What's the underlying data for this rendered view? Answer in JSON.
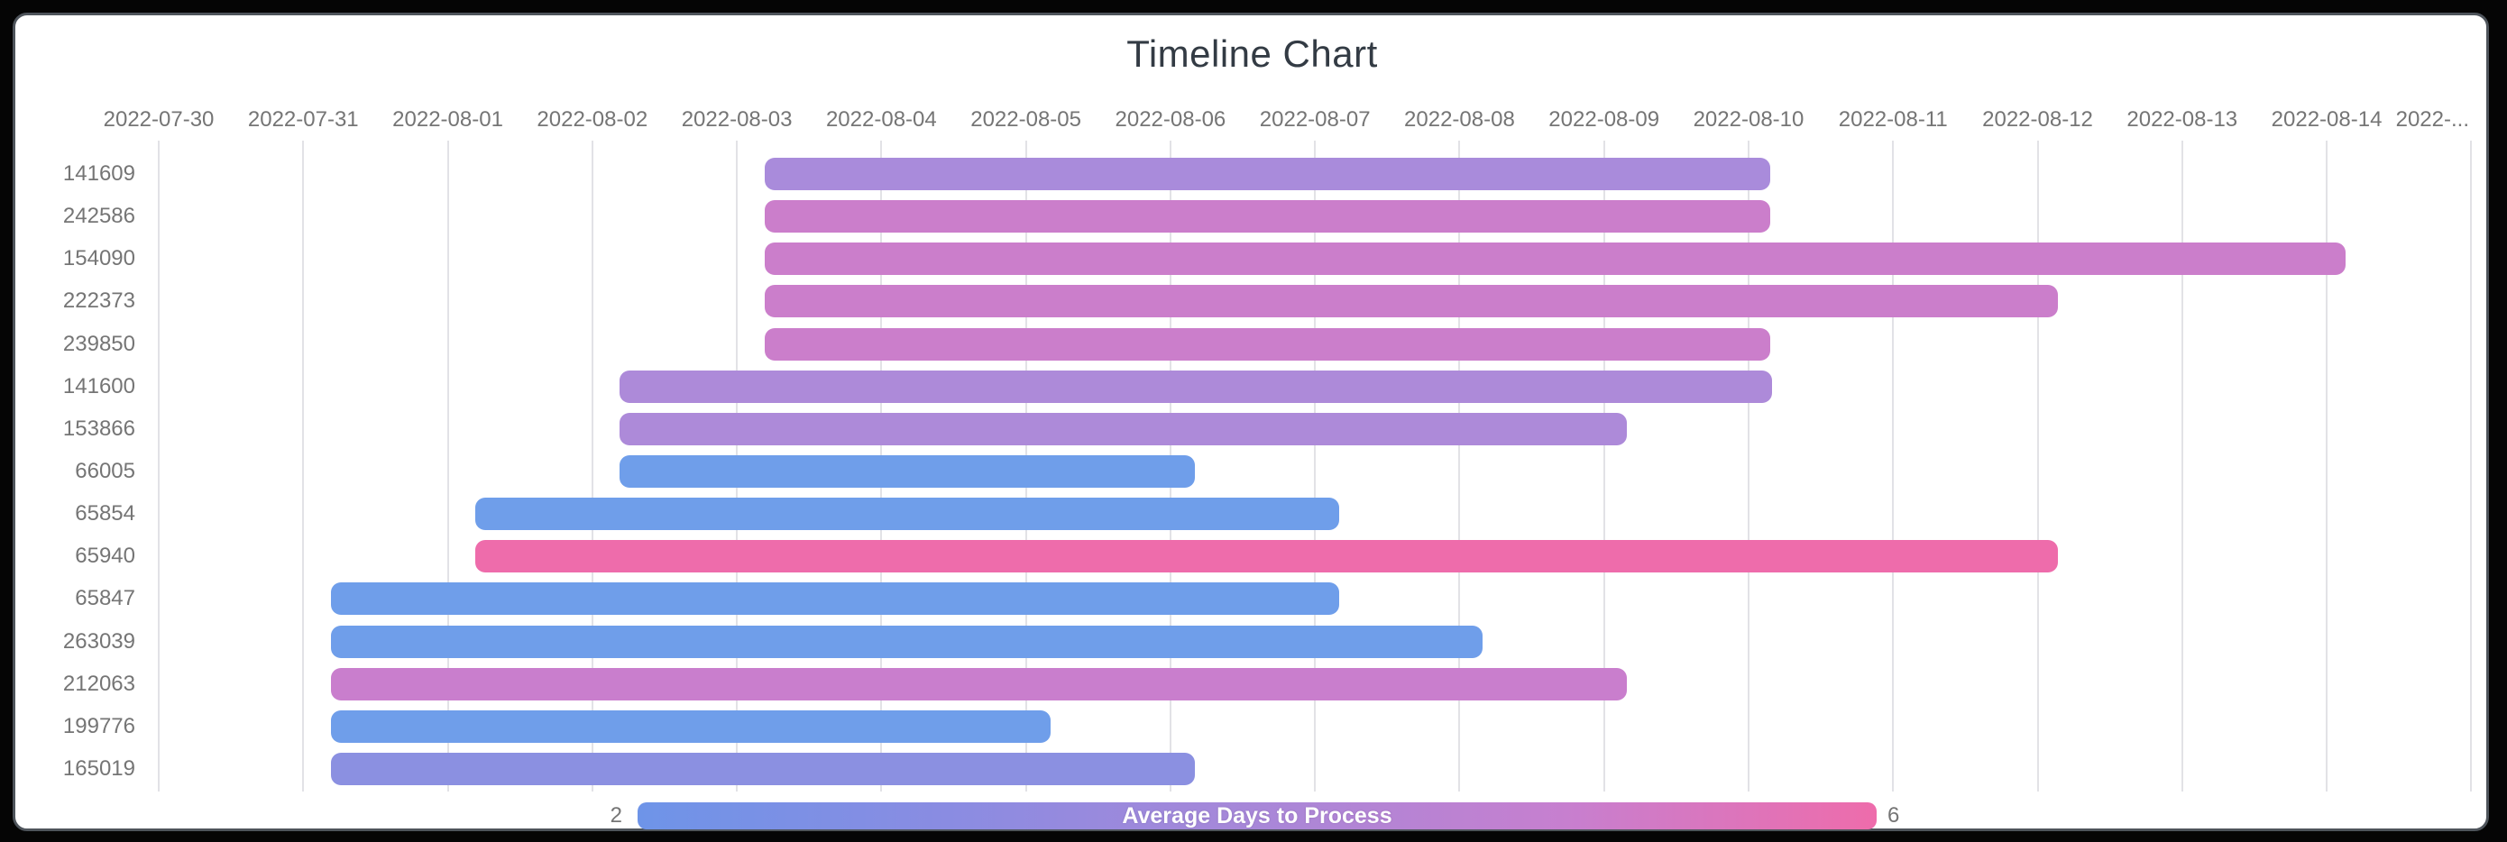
{
  "window": {
    "background": "#050505",
    "frame_border": "#4e545b"
  },
  "title": "Timeline Chart",
  "legend": {
    "min_label": "2",
    "max_label": "6",
    "title": "Average Days to Process",
    "gradient": [
      "#6e94e8",
      "#8a8ce2",
      "#a887d8",
      "#c77fcf",
      "#ee6cab"
    ]
  },
  "styles": {
    "grid_color": "#e2e2e6",
    "axis_label_color": "#757575",
    "title_color": "#333b44"
  },
  "chart_data": {
    "type": "timeline",
    "title": "Timeline Chart",
    "x_axis": {
      "tick_labels": [
        "2022-07-30",
        "2022-07-31",
        "2022-08-01",
        "2022-08-02",
        "2022-08-03",
        "2022-08-04",
        "2022-08-05",
        "2022-08-06",
        "2022-08-07",
        "2022-08-08",
        "2022-08-09",
        "2022-08-10",
        "2022-08-11",
        "2022-08-12",
        "2022-08-13",
        "2022-08-14",
        "2022-..."
      ],
      "origin_date": "2022-07-30",
      "day_span_shown": 16.2,
      "grid": true
    },
    "color_scale": {
      "label": "Average Days to Process",
      "min": 2,
      "max": 6,
      "min_color": "#6e94e8",
      "max_color": "#ee6cab",
      "legend_position": "bottom"
    },
    "tasks": [
      {
        "id": "141609",
        "start_day": 4.19,
        "end_day": 11.15,
        "color": "#a98bdb"
      },
      {
        "id": "242586",
        "start_day": 4.19,
        "end_day": 11.15,
        "color": "#cb7ecb"
      },
      {
        "id": "154090",
        "start_day": 4.19,
        "end_day": 15.13,
        "color": "#cb7ecb"
      },
      {
        "id": "222373",
        "start_day": 4.19,
        "end_day": 13.14,
        "color": "#cb7ecb"
      },
      {
        "id": "239850",
        "start_day": 4.19,
        "end_day": 11.15,
        "color": "#cb7ecb"
      },
      {
        "id": "141600",
        "start_day": 3.19,
        "end_day": 11.16,
        "color": "#ad8ad9"
      },
      {
        "id": "153866",
        "start_day": 3.19,
        "end_day": 10.16,
        "color": "#ad8ad9"
      },
      {
        "id": "66005",
        "start_day": 3.19,
        "end_day": 7.17,
        "color": "#6f9eea"
      },
      {
        "id": "65854",
        "start_day": 2.19,
        "end_day": 8.17,
        "color": "#6f9eea"
      },
      {
        "id": "65940",
        "start_day": 2.19,
        "end_day": 13.14,
        "color": "#ee6cab"
      },
      {
        "id": "65847",
        "start_day": 1.19,
        "end_day": 8.17,
        "color": "#6f9eea"
      },
      {
        "id": "263039",
        "start_day": 1.19,
        "end_day": 9.16,
        "color": "#6f9eea"
      },
      {
        "id": "212063",
        "start_day": 1.19,
        "end_day": 10.16,
        "color": "#c97ecd"
      },
      {
        "id": "199776",
        "start_day": 1.19,
        "end_day": 6.17,
        "color": "#6f9eea"
      },
      {
        "id": "165019",
        "start_day": 1.19,
        "end_day": 7.17,
        "color": "#8b90e1"
      }
    ]
  }
}
